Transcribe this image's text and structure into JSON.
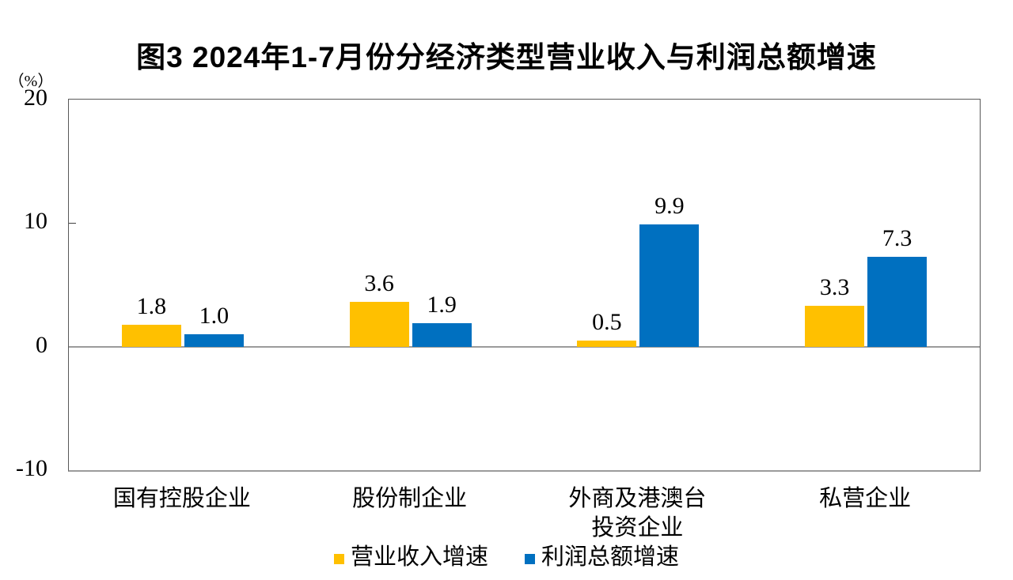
{
  "chart_data": {
    "type": "bar",
    "title": "图3  2024年1-7月份分经济类型营业收入与利润总额增速",
    "unit_label": "（%）",
    "categories": [
      "国有控股企业",
      "股份制企业",
      "外商及港澳台\n投资企业",
      "私营企业"
    ],
    "series": [
      {
        "name": "营业收入增速",
        "color": "#FFC000",
        "values": [
          1.8,
          3.6,
          0.5,
          3.3
        ]
      },
      {
        "name": "利润总额增速",
        "color": "#0070C0",
        "values": [
          1.0,
          1.9,
          9.9,
          7.3
        ]
      }
    ],
    "ylim": [
      -10,
      20
    ],
    "yticks": [
      20,
      10,
      0,
      -10
    ],
    "grid": "zero-line-only",
    "legend_position": "bottom",
    "colors": {
      "revenue_series": "#FFC000",
      "profit_series": "#0070C0",
      "zero_line": "#9b9b9b",
      "plot_border": "#595959",
      "text": "#000000"
    }
  }
}
